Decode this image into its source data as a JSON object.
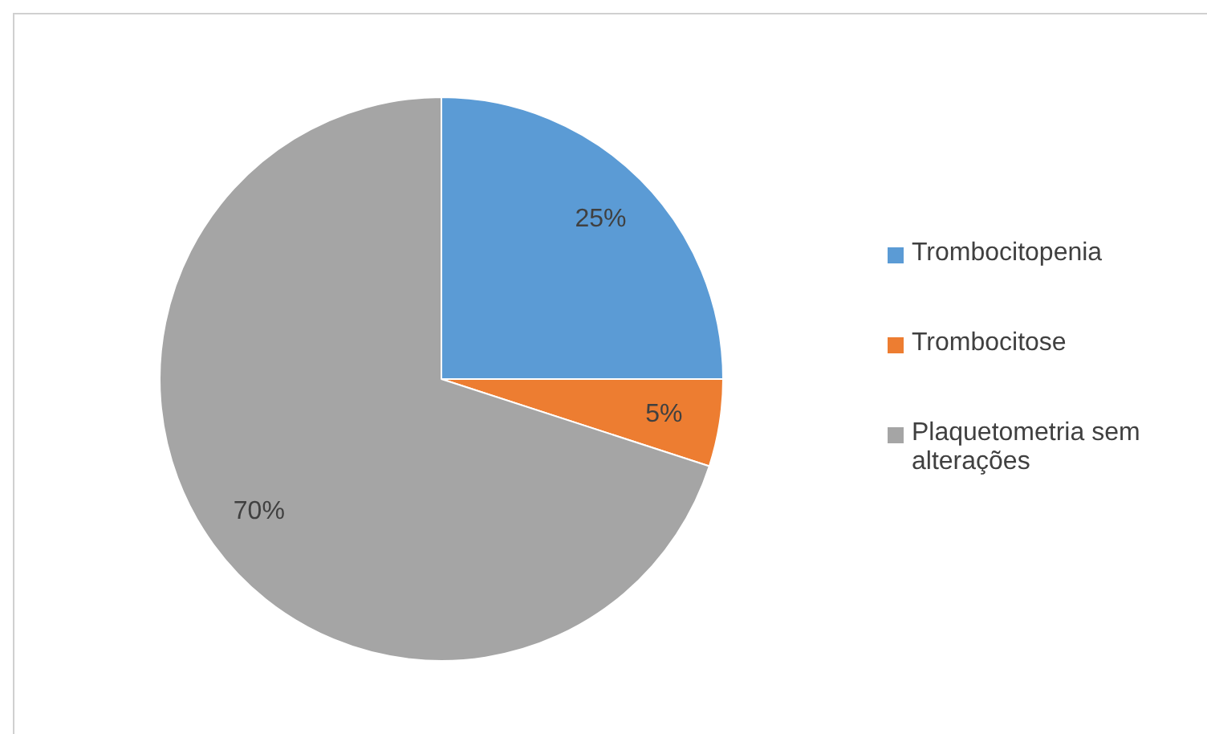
{
  "chart_data": {
    "type": "pie",
    "categories": [
      "Trombocitopenia",
      "Trombocitose",
      "Plaquetometria sem alterações"
    ],
    "values": [
      25,
      5,
      70
    ],
    "colors": [
      "#5b9bd5",
      "#ed7d31",
      "#a5a5a5"
    ],
    "value_labels": [
      "25%",
      "5%",
      "70%"
    ],
    "legend": "right"
  }
}
